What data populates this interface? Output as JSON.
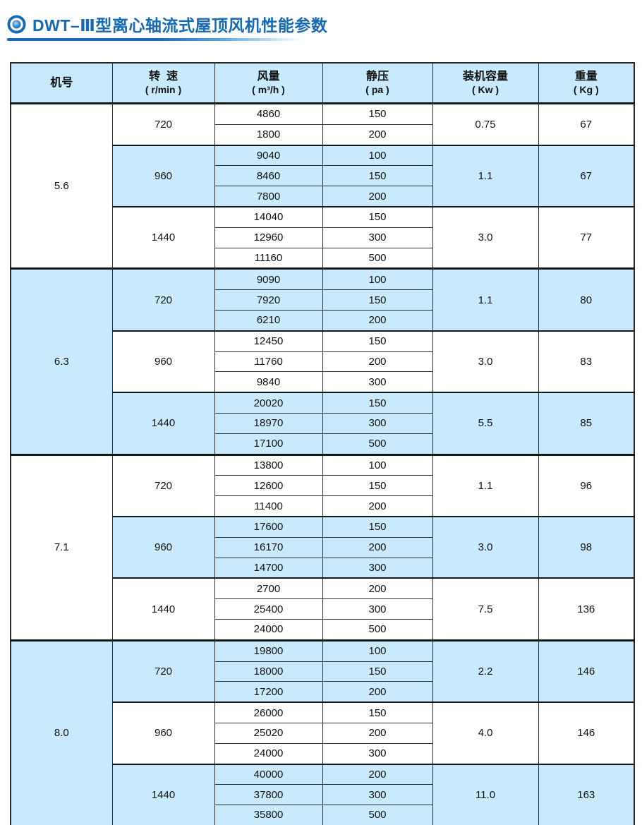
{
  "title": {
    "icon": "double-circle-bullet-icon",
    "text": "DWT–Ⅲ型离心轴流式屋顶风机性能参数"
  },
  "colors": {
    "accent_blue": "#1769b4",
    "row_shade_blue": "#c8eafc",
    "border_dark": "#161616"
  },
  "table": {
    "headers": [
      {
        "line1": "机号",
        "line2": ""
      },
      {
        "line1": "转  速",
        "line2": "( r/min )"
      },
      {
        "line1": "风量",
        "line2": "( m³/h )"
      },
      {
        "line1": "静压",
        "line2": "( pa )"
      },
      {
        "line1": "装机容量",
        "line2": "( Kw )"
      },
      {
        "line1": "重量",
        "line2": "( Kg )"
      }
    ],
    "sections": [
      {
        "model": "5.6",
        "shaded": false,
        "groups": [
          {
            "speed": "720",
            "shaded": false,
            "power": "0.75",
            "weight": "67",
            "rows": [
              [
                "4860",
                "150"
              ],
              [
                "1800",
                "200"
              ]
            ]
          },
          {
            "speed": "960",
            "shaded": true,
            "power": "1.1",
            "weight": "67",
            "rows": [
              [
                "9040",
                "100"
              ],
              [
                "8460",
                "150"
              ],
              [
                "7800",
                "200"
              ]
            ]
          },
          {
            "speed": "1440",
            "shaded": false,
            "power": "3.0",
            "weight": "77",
            "rows": [
              [
                "14040",
                "150"
              ],
              [
                "12960",
                "300"
              ],
              [
                "11160",
                "500"
              ]
            ]
          }
        ]
      },
      {
        "model": "6.3",
        "shaded": true,
        "groups": [
          {
            "speed": "720",
            "shaded": true,
            "power": "1.1",
            "weight": "80",
            "rows": [
              [
                "9090",
                "100"
              ],
              [
                "7920",
                "150"
              ],
              [
                "6210",
                "200"
              ]
            ]
          },
          {
            "speed": "960",
            "shaded": false,
            "power": "3.0",
            "weight": "83",
            "rows": [
              [
                "12450",
                "150"
              ],
              [
                "11760",
                "200"
              ],
              [
                "9840",
                "300"
              ]
            ]
          },
          {
            "speed": "1440",
            "shaded": true,
            "power": "5.5",
            "weight": "85",
            "rows": [
              [
                "20020",
                "150"
              ],
              [
                "18970",
                "300"
              ],
              [
                "17100",
                "500"
              ]
            ]
          }
        ]
      },
      {
        "model": "7.1",
        "shaded": false,
        "groups": [
          {
            "speed": "720",
            "shaded": false,
            "power": "1.1",
            "weight": "96",
            "rows": [
              [
                "13800",
                "100"
              ],
              [
                "12600",
                "150"
              ],
              [
                "11400",
                "200"
              ]
            ]
          },
          {
            "speed": "960",
            "shaded": true,
            "power": "3.0",
            "weight": "98",
            "rows": [
              [
                "17600",
                "150"
              ],
              [
                "16170",
                "200"
              ],
              [
                "14700",
                "300"
              ]
            ]
          },
          {
            "speed": "1440",
            "shaded": false,
            "power": "7.5",
            "weight": "136",
            "rows": [
              [
                "2700",
                "200"
              ],
              [
                "25400",
                "300"
              ],
              [
                "24000",
                "500"
              ]
            ]
          }
        ]
      },
      {
        "model": "8.0",
        "shaded": true,
        "groups": [
          {
            "speed": "720",
            "shaded": true,
            "power": "2.2",
            "weight": "146",
            "rows": [
              [
                "19800",
                "100"
              ],
              [
                "18000",
                "150"
              ],
              [
                "17200",
                "200"
              ]
            ]
          },
          {
            "speed": "960",
            "shaded": false,
            "power": "4.0",
            "weight": "146",
            "rows": [
              [
                "26000",
                "150"
              ],
              [
                "25020",
                "200"
              ],
              [
                "24000",
                "300"
              ]
            ]
          },
          {
            "speed": "1440",
            "shaded": true,
            "power": "11.0",
            "weight": "163",
            "rows": [
              [
                "40000",
                "200"
              ],
              [
                "37800",
                "300"
              ],
              [
                "35800",
                "500"
              ]
            ]
          }
        ]
      }
    ]
  }
}
